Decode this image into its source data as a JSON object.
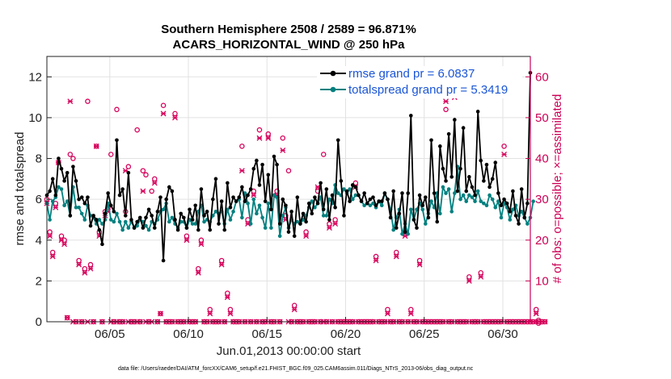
{
  "chart_data": {
    "type": "line",
    "title_line1": "Southern Hemisphere 2508 / 2589 = 96.871%",
    "title_line2": "ACARS_HORIZONTAL_WIND @ 250 hPa",
    "xlabel": "Jun.01,2013 00:00:00 start",
    "ylabel_left": "rmse and totalspread",
    "ylabel_right": "# of obs: o=possible; ×=assimilated",
    "ylim_left": [
      0,
      13
    ],
    "ylim_right": [
      0,
      65
    ],
    "xlim": [
      1.0,
      31.75
    ],
    "yticks_left": [
      0,
      2,
      4,
      6,
      8,
      10,
      12
    ],
    "yticks_right": [
      0,
      10,
      20,
      30,
      40,
      50,
      60
    ],
    "xticks": [
      {
        "value": 5,
        "label": "06/05"
      },
      {
        "value": 10,
        "label": "06/10"
      },
      {
        "value": 15,
        "label": "06/15"
      },
      {
        "value": 20,
        "label": "06/20"
      },
      {
        "value": 25,
        "label": "06/25"
      },
      {
        "value": 30,
        "label": "06/30"
      }
    ],
    "grid": true,
    "legend_position": "top-right",
    "footnote": "data file: /Users/raeder/DAI/ATM_forcXX/CAM6_setup/f.e21.FHIST_BGC.f09_025.CAM6assim.011/Diags_NTrS_2013-06/obs_diag_output.nc",
    "series": [
      {
        "name": "rmse",
        "legend": "rmse grand pr = 6.0837",
        "color": "#000000",
        "values": [
          6.2,
          6.4,
          7.0,
          6.2,
          8.0,
          7.5,
          6.9,
          7.3,
          5.2,
          7.6,
          6.9,
          6.0,
          6.1,
          5.8,
          6.1,
          4.7,
          5.2,
          5.0,
          4.5,
          3.8,
          5.3,
          6.3,
          5.7,
          5.4,
          8.9,
          6.2,
          6.5,
          5.2,
          7.3,
          5.0,
          4.6,
          4.9,
          5.1,
          4.6,
          5.1,
          5.5,
          5.2,
          4.6,
          5.4,
          6.1,
          3.0,
          6.0,
          6.6,
          6.4,
          5.0,
          4.5,
          5.3,
          5.1,
          4.6,
          5.5,
          5.0,
          5.7,
          4.5,
          6.5,
          5.2,
          5.4,
          4.5,
          6.0,
          7.0,
          4.8,
          5.9,
          4.5,
          6.8,
          5.6,
          6.1,
          5.9,
          6.1,
          6.6,
          5.9,
          6.2,
          6.5,
          7.5,
          7.9,
          6.7,
          7.7,
          5.9,
          7.2,
          5.5,
          8.1,
          7.7,
          4.8,
          6.0,
          5.7,
          4.4,
          5.4,
          4.2,
          6.1,
          4.8,
          5.3,
          4.9,
          5.8,
          5.3,
          6.1,
          5.8,
          6.8,
          5.5,
          6.5,
          5.0,
          6.2,
          5.6,
          8.9,
          6.9,
          5.2,
          6.4,
          5.9,
          6.7,
          6.6,
          6.2,
          5.9,
          6.3,
          5.8,
          6.0,
          6.1,
          5.7,
          5.9,
          5.9,
          6.3,
          6.0,
          5.1,
          6.4,
          4.6,
          5.3,
          6.3,
          4.4,
          6.3,
          10.1,
          5.0,
          4.6,
          6.2,
          5.7,
          6.1,
          5.1,
          8.9,
          6.3,
          4.9,
          8.6,
          7.5,
          6.9,
          9.2,
          7.1,
          9.9,
          6.4,
          7.5,
          9.5,
          6.4,
          7.1,
          6.6,
          6.2,
          10.3,
          7.9,
          6.9,
          7.7,
          6.6,
          7.0,
          7.8,
          6.3,
          5.7,
          6.0,
          5.8,
          5.4,
          6.4,
          5.2,
          4.8,
          6.5,
          5.1,
          5.8,
          12.2
        ]
      },
      {
        "name": "totalspread",
        "legend": "totalspread grand pr = 5.3419",
        "color": "#00807f",
        "values": [
          5.8,
          5.0,
          5.9,
          6.1,
          6.6,
          6.5,
          5.7,
          5.9,
          5.2,
          6.6,
          5.6,
          5.6,
          5.3,
          5.0,
          5.7,
          5.2,
          5.1,
          4.8,
          5.0,
          4.8,
          5.0,
          5.8,
          5.0,
          4.9,
          5.3,
          4.9,
          4.5,
          4.9,
          4.6,
          4.9,
          4.6,
          4.7,
          5.0,
          4.9,
          4.7,
          4.5,
          4.9,
          4.8,
          5.0,
          5.4,
          5.5,
          5.8,
          4.9,
          5.1,
          4.8,
          4.6,
          4.9,
          4.9,
          4.6,
          5.0,
          4.8,
          4.8,
          5.4,
          5.7,
          4.9,
          5.0,
          4.9,
          5.2,
          5.4,
          5.3,
          5.4,
          4.8,
          5.5,
          5.0,
          5.4,
          5.9,
          6.0,
          5.1,
          6.3,
          5.8,
          4.8,
          6.0,
          5.3,
          5.7,
          5.1,
          4.6,
          5.8,
          4.6,
          6.2,
          6.1,
          4.2,
          5.2,
          5.6,
          4.6,
          5.0,
          4.8,
          4.9,
          4.8,
          5.0,
          5.2,
          5.6,
          5.9,
          5.6,
          5.8,
          6.1,
          5.2,
          5.2,
          6.0,
          5.8,
          6.7,
          6.3,
          6.2,
          6.5,
          6.3,
          6.5,
          6.0,
          6.2,
          6.2,
          5.9,
          5.7,
          5.8,
          5.7,
          5.8,
          5.6,
          5.9,
          5.7,
          6.3,
          6.0,
          5.5,
          4.5,
          5.1,
          5.5,
          4.3,
          4.8,
          4.3,
          5.5,
          5.0,
          5.5,
          5.8,
          5.5,
          4.8,
          5.3,
          5.9,
          5.6,
          6.3,
          5.3,
          6.6,
          6.3,
          6.5,
          5.4,
          6.3,
          7.6,
          6.0,
          6.2,
          5.9,
          6.2,
          6.1,
          5.9,
          6.4,
          5.9,
          5.8,
          5.7,
          6.2,
          6.0,
          5.6,
          5.9,
          5.1,
          5.8,
          5.6,
          5.0,
          5.5,
          5.7,
          5.2,
          5.4,
          5.1,
          4.8,
          5.1,
          5.9
        ]
      },
      {
        "name": "possible",
        "legend": "",
        "color": "#d6005a",
        "marker": "o",
        "values": [
          30,
          22,
          17,
          29,
          39,
          21,
          20,
          1,
          41,
          40,
          0,
          15,
          0,
          13,
          54,
          14,
          0,
          43,
          22,
          0,
          27,
          28,
          41,
          0,
          52,
          0,
          0,
          27,
          38,
          0,
          0,
          47,
          0,
          37,
          36,
          0,
          32,
          35,
          0,
          2,
          53,
          0,
          0,
          0,
          51,
          0,
          0,
          0,
          21,
          0,
          0,
          0,
          13,
          20,
          0,
          0,
          3,
          0,
          0,
          0,
          15,
          0,
          7,
          3,
          0,
          0,
          0,
          43,
          0,
          25,
          0,
          32,
          0,
          47,
          0,
          0,
          46,
          0,
          0,
          32,
          0,
          45,
          26,
          37,
          0,
          4,
          0,
          0,
          0,
          22,
          0,
          0,
          0,
          32,
          0,
          41,
          0,
          24,
          0,
          25,
          0,
          0,
          0,
          0,
          0,
          0,
          34,
          0,
          0,
          0,
          0,
          0,
          0,
          16,
          0,
          0,
          0,
          3,
          0,
          0,
          17,
          0,
          0,
          22,
          0,
          3,
          0,
          0,
          15,
          0,
          0,
          0,
          0,
          0,
          0,
          0,
          0,
          52,
          0,
          0,
          56,
          0,
          0,
          0,
          0,
          11,
          0,
          0,
          0,
          12,
          0,
          0,
          0,
          0,
          0,
          0,
          0,
          43,
          0,
          0,
          0,
          0,
          0,
          0,
          0,
          0,
          0,
          0,
          3,
          0,
          0,
          0
        ]
      },
      {
        "name": "assimilated",
        "legend": "",
        "color": "#d6005a",
        "marker": "x",
        "values": [
          29,
          21,
          16,
          28,
          39,
          20,
          19,
          1,
          54,
          0,
          0,
          14,
          0,
          12,
          0,
          13,
          0,
          43,
          21,
          0,
          26,
          27,
          0,
          0,
          0,
          0,
          0,
          37,
          0,
          0,
          0,
          0,
          0,
          32,
          0,
          0,
          0,
          34,
          0,
          2,
          51,
          0,
          0,
          0,
          50,
          0,
          0,
          0,
          20,
          0,
          0,
          0,
          12,
          19,
          0,
          0,
          2,
          0,
          0,
          0,
          14,
          0,
          6,
          2,
          0,
          0,
          0,
          37,
          0,
          24,
          0,
          31,
          0,
          45,
          0,
          0,
          45,
          0,
          0,
          31,
          0,
          42,
          25,
          0,
          0,
          3,
          0,
          0,
          0,
          21,
          0,
          0,
          0,
          33,
          0,
          0,
          0,
          23,
          0,
          24,
          0,
          0,
          0,
          0,
          0,
          0,
          33,
          0,
          0,
          0,
          0,
          0,
          0,
          15,
          0,
          0,
          0,
          2,
          0,
          0,
          16,
          0,
          0,
          21,
          0,
          2,
          0,
          0,
          14,
          0,
          0,
          0,
          0,
          0,
          0,
          0,
          0,
          54,
          0,
          0,
          55,
          0,
          0,
          0,
          0,
          10,
          0,
          0,
          0,
          11,
          0,
          0,
          0,
          0,
          0,
          0,
          0,
          41,
          0,
          0,
          0,
          0,
          0,
          0,
          0,
          0,
          0,
          0,
          2,
          0,
          0,
          0
        ]
      }
    ]
  }
}
